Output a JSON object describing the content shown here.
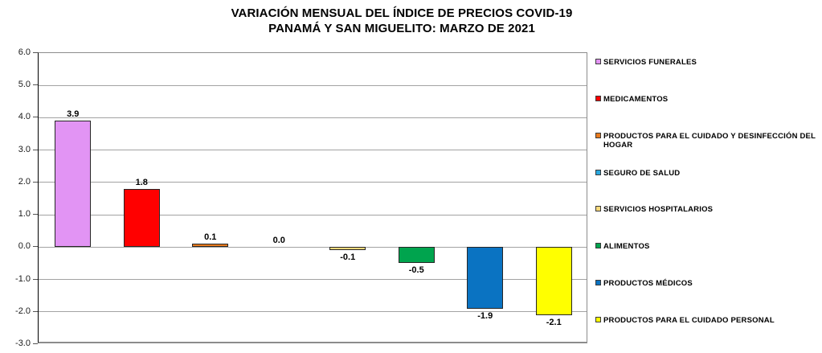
{
  "title": {
    "line1": "VARIACIÓN MENSUAL DEL ÍNDICE DE PRECIOS COVID-19",
    "line2": "PANAMÁ Y SAN MIGUELITO: MARZO DE 2021"
  },
  "chart_data": {
    "type": "bar",
    "title": "VARIACIÓN MENSUAL DEL ÍNDICE DE PRECIOS COVID-19 — PANAMÁ Y SAN MIGUELITO: MARZO DE 2021",
    "categories": [
      "SERVICIOS FUNERALES",
      "MEDICAMENTOS",
      "PRODUCTOS PARA EL CUIDADO Y DESINFECCIÓN DEL HOGAR",
      "SEGURO DE SALUD",
      "SERVICIOS HOSPITALARIOS",
      "ALIMENTOS",
      "PRODUCTOS MÉDICOS",
      "PRODUCTOS PARA EL CUIDADO PERSONAL"
    ],
    "values": [
      3.9,
      1.8,
      0.1,
      0.0,
      -0.1,
      -0.5,
      -1.9,
      -2.1
    ],
    "value_labels": [
      "3.9",
      "1.8",
      "0.1",
      "0.0",
      "-0.1",
      "-0.5",
      "-1.9",
      "-2.1"
    ],
    "colors": [
      "#E294F4",
      "#FF0000",
      "#E87A1E",
      "#29A8DF",
      "#F9D97B",
      "#00A44E",
      "#0A73C2",
      "#FFFF00"
    ],
    "bar_border_color": "#262626",
    "xlabel": "",
    "ylabel": "",
    "ylim": [
      -3.0,
      6.0
    ],
    "ytick_step": 1.0,
    "ytick_labels": [
      "6.0",
      "5.0",
      "4.0",
      "3.0",
      "2.0",
      "1.0",
      "0.0",
      "-1.0",
      "-2.0",
      "-3.0"
    ],
    "grid": true,
    "gridline_color": "#a3a3a3",
    "legend_position": "right"
  }
}
